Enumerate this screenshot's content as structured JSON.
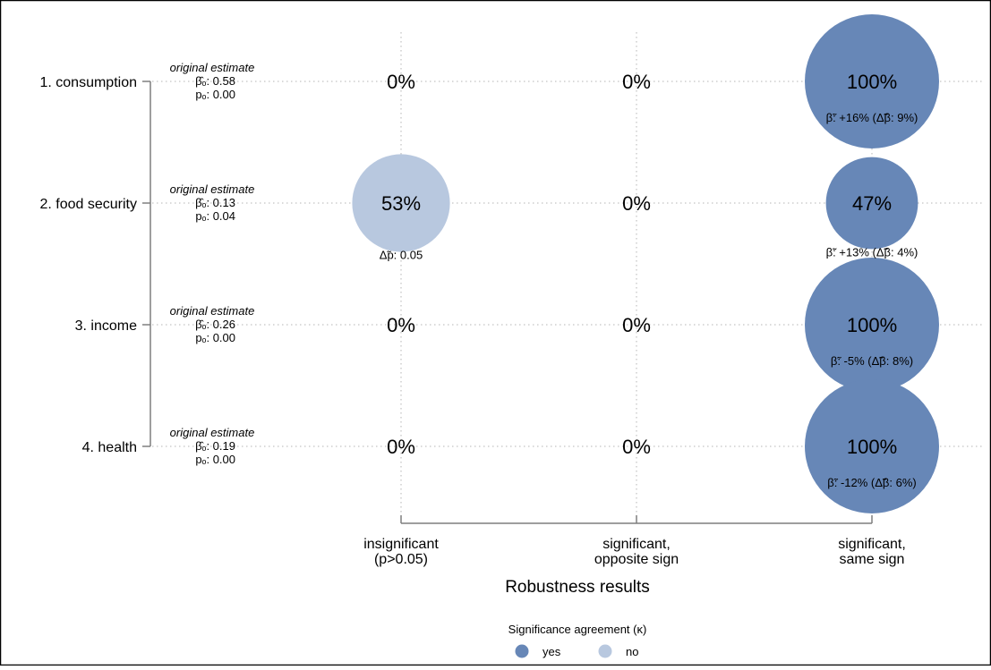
{
  "chart_data": {
    "type": "scatter",
    "x_categories": [
      [
        "insignificant",
        "(p>0.05)"
      ],
      [
        "significant,",
        "opposite sign"
      ],
      [
        "significant,",
        "same sign"
      ]
    ],
    "x_axis_title": "Robustness results",
    "rows": [
      {
        "label": "1. consumption",
        "estimate_title": "original estimate",
        "beta_line": "β̂ₒ: 0.58",
        "p_line": "pₒ: 0.00",
        "cells": [
          {
            "pct": 0,
            "text": "0%",
            "sub": ""
          },
          {
            "pct": 0,
            "text": "0%",
            "sub": ""
          },
          {
            "pct": 100,
            "text": "100%",
            "agreement": "yes",
            "sub": "β̃: +16% (Δ̃β: 9%)"
          }
        ]
      },
      {
        "label": "2. food security",
        "estimate_title": "original estimate",
        "beta_line": "β̂ₒ: 0.13",
        "p_line": "pₒ: 0.04",
        "cells": [
          {
            "pct": 53,
            "text": "53%",
            "agreement": "no",
            "sub": "Δ̃p: 0.05"
          },
          {
            "pct": 0,
            "text": "0%",
            "sub": ""
          },
          {
            "pct": 47,
            "text": "47%",
            "agreement": "yes",
            "sub": "β̃: +13% (Δ̃β: 4%)"
          }
        ]
      },
      {
        "label": "3. income",
        "estimate_title": "original estimate",
        "beta_line": "β̂ₒ: 0.26",
        "p_line": "pₒ: 0.00",
        "cells": [
          {
            "pct": 0,
            "text": "0%",
            "sub": ""
          },
          {
            "pct": 0,
            "text": "0%",
            "sub": ""
          },
          {
            "pct": 100,
            "text": "100%",
            "agreement": "yes",
            "sub": "β̃: -5% (Δ̃β: 8%)"
          }
        ]
      },
      {
        "label": "4. health",
        "estimate_title": "original estimate",
        "beta_line": "β̂ₒ: 0.19",
        "p_line": "pₒ: 0.00",
        "cells": [
          {
            "pct": 0,
            "text": "0%",
            "sub": ""
          },
          {
            "pct": 0,
            "text": "0%",
            "sub": ""
          },
          {
            "pct": 100,
            "text": "100%",
            "agreement": "yes",
            "sub": "β̃: -12% (Δ̃β: 6%)"
          }
        ]
      }
    ],
    "legend": {
      "title": "Significance agreement (κ)",
      "placement": "bottom",
      "items": [
        {
          "label": "yes",
          "color": "#6787b7"
        },
        {
          "label": "no",
          "color": "#b8c8df"
        }
      ]
    },
    "colors": {
      "yes": "#6787b7",
      "no": "#b8c8df",
      "grid": "#b5b5b5",
      "axis": "#7f7f7f"
    },
    "grid": true
  }
}
